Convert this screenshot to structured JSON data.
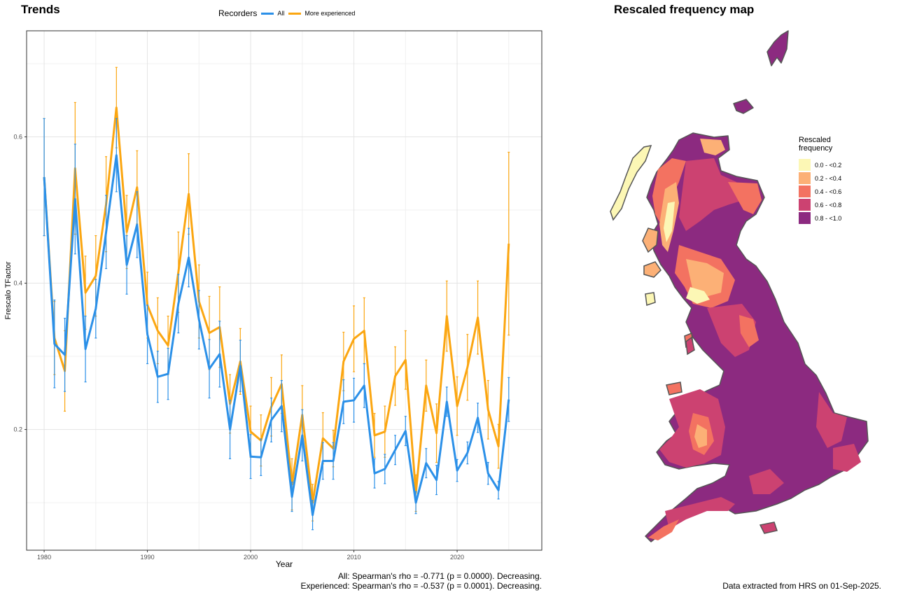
{
  "trends": {
    "title": "Trends",
    "legend_title": "Recorders",
    "stats_line1": "All: Spearman's rho = -0.771 (p = 0.0000). Decreasing.",
    "stats_line2": "Experienced: Spearman's rho = -0.537 (p = 0.0001). Decreasing."
  },
  "map": {
    "title": "Rescaled frequency map",
    "legend_title_1": "Rescaled",
    "legend_title_2": "frequency",
    "bins": [
      {
        "label": "0.0 - <0.2",
        "color": "#fcf7b5"
      },
      {
        "label": "0.2 - <0.4",
        "color": "#fcb076"
      },
      {
        "label": "0.4 - <0.6",
        "color": "#f37261"
      },
      {
        "label": "0.6 - <0.8",
        "color": "#cc4271"
      },
      {
        "label": "0.8 - <1.0",
        "color": "#8c2a80"
      }
    ],
    "source": "Data extracted from HRS on 01-Sep-2025."
  },
  "chart_data": {
    "type": "line",
    "xlabel": "Year",
    "ylabel": "Frescalo TFactor",
    "xlim": [
      1978.3,
      2028.2
    ],
    "ylim": [
      0.035,
      0.745
    ],
    "xticks": [
      1980,
      1990,
      2000,
      2010,
      2020
    ],
    "yticks": [
      0.2,
      0.4,
      0.6
    ],
    "grid": true,
    "legend_placement": "top",
    "x": [
      1980,
      1981,
      1982,
      1983,
      1984,
      1985,
      1986,
      1987,
      1988,
      1989,
      1990,
      1991,
      1992,
      1993,
      1994,
      1995,
      1996,
      1997,
      1998,
      1999,
      2000,
      2001,
      2002,
      2003,
      2004,
      2005,
      2006,
      2007,
      2008,
      2009,
      2010,
      2011,
      2012,
      2013,
      2014,
      2015,
      2016,
      2017,
      2018,
      2019,
      2020,
      2021,
      2022,
      2023,
      2024,
      2025
    ],
    "series": [
      {
        "name": "All",
        "color": "#2b90e8",
        "values": [
          0.545,
          0.317,
          0.302,
          0.515,
          0.31,
          0.365,
          0.47,
          0.575,
          0.425,
          0.48,
          0.33,
          0.272,
          0.276,
          0.372,
          0.435,
          0.35,
          0.283,
          0.303,
          0.2,
          0.287,
          0.163,
          0.162,
          0.213,
          0.232,
          0.108,
          0.192,
          0.083,
          0.157,
          0.157,
          0.238,
          0.24,
          0.26,
          0.14,
          0.146,
          0.172,
          0.198,
          0.1,
          0.154,
          0.131,
          0.238,
          0.144,
          0.168,
          0.216,
          0.14,
          0.117,
          0.241
        ],
        "err": [
          0.08,
          0.06,
          0.05,
          0.075,
          0.045,
          0.04,
          0.05,
          0.05,
          0.04,
          0.045,
          0.04,
          0.035,
          0.035,
          0.04,
          0.04,
          0.04,
          0.04,
          0.045,
          0.04,
          0.035,
          0.03,
          0.025,
          0.03,
          0.035,
          0.02,
          0.035,
          0.02,
          0.025,
          0.025,
          0.03,
          0.03,
          0.03,
          0.02,
          0.02,
          0.02,
          0.02,
          0.015,
          0.02,
          0.02,
          0.02,
          0.015,
          0.015,
          0.02,
          0.015,
          0.012,
          0.03
        ]
      },
      {
        "name": "More experienced",
        "color": "#fba611",
        "values": [
          0.545,
          0.325,
          0.28,
          0.557,
          0.387,
          0.41,
          0.508,
          0.64,
          0.47,
          0.531,
          0.37,
          0.335,
          0.315,
          0.415,
          0.522,
          0.375,
          0.332,
          0.34,
          0.235,
          0.293,
          0.197,
          0.185,
          0.231,
          0.262,
          0.125,
          0.22,
          0.1,
          0.188,
          0.174,
          0.293,
          0.324,
          0.335,
          0.192,
          0.197,
          0.273,
          0.295,
          0.113,
          0.26,
          0.195,
          0.355,
          0.232,
          0.285,
          0.353,
          0.227,
          0.177,
          0.454
        ],
        "err": [
          0.08,
          0.05,
          0.055,
          0.09,
          0.05,
          0.055,
          0.065,
          0.055,
          0.05,
          0.05,
          0.045,
          0.045,
          0.04,
          0.055,
          0.055,
          0.05,
          0.05,
          0.055,
          0.04,
          0.045,
          0.035,
          0.035,
          0.04,
          0.04,
          0.035,
          0.04,
          0.025,
          0.035,
          0.025,
          0.04,
          0.045,
          0.045,
          0.03,
          0.035,
          0.04,
          0.04,
          0.025,
          0.035,
          0.04,
          0.048,
          0.04,
          0.045,
          0.05,
          0.04,
          0.03,
          0.125
        ]
      }
    ]
  }
}
